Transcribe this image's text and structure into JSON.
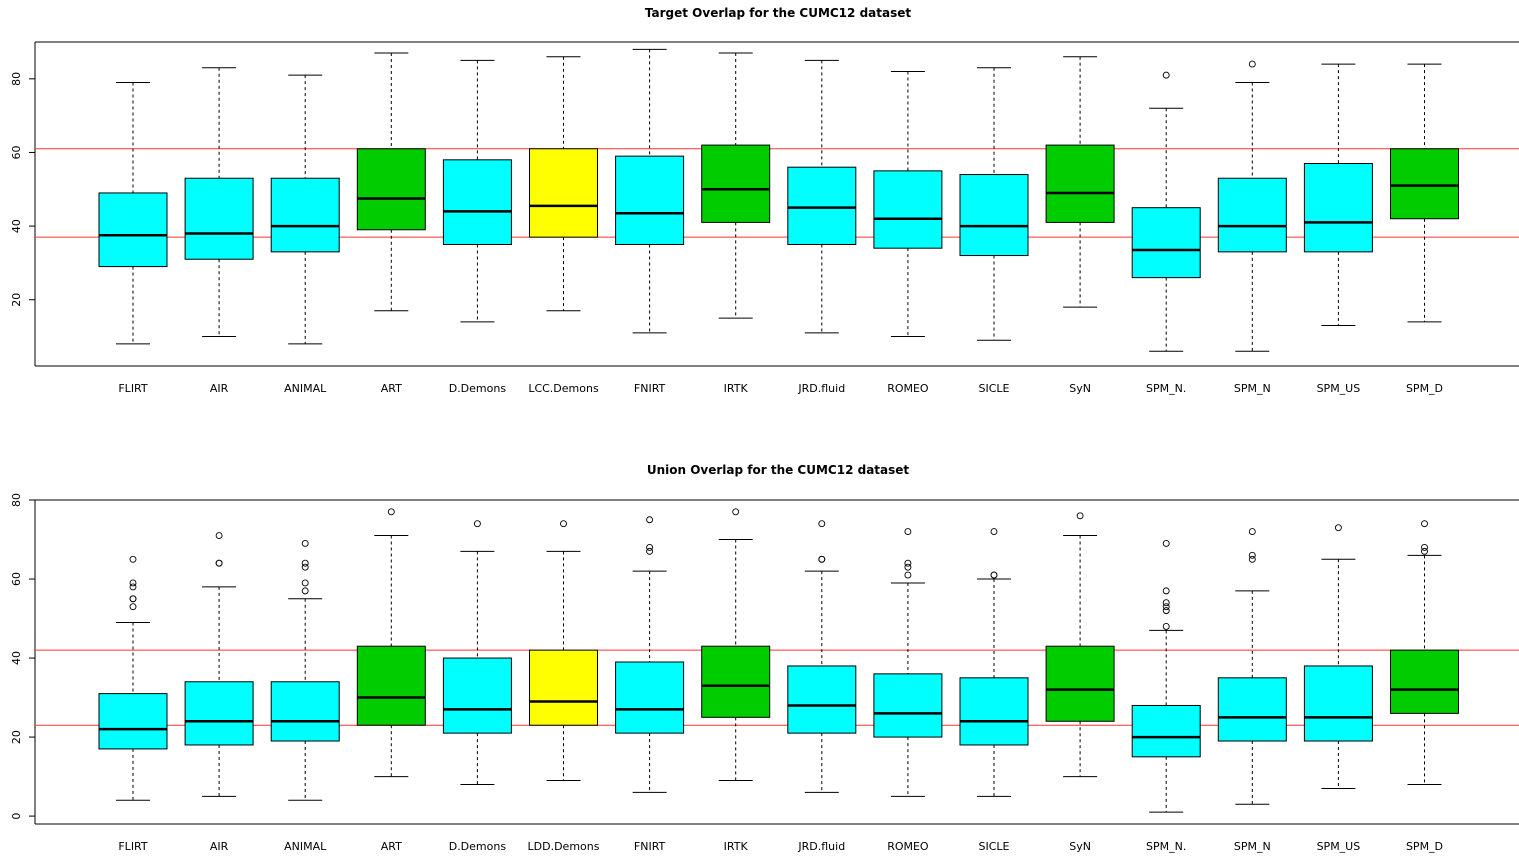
{
  "chart_data": [
    {
      "type": "boxplot",
      "title": "Target Overlap for the CUMC12 dataset",
      "xlabel": "",
      "ylabel": "",
      "ylim": [
        2,
        90
      ],
      "yticks": [
        20,
        40,
        60,
        80
      ],
      "reference_lines": [
        37,
        61
      ],
      "reference_color": "#ff3333",
      "categories": [
        "FLIRT",
        "AIR",
        "ANIMAL",
        "ART",
        "D.Demons",
        "LCC.Demons",
        "FNIRT",
        "IRTK",
        "JRD.fluid",
        "ROMEO",
        "SICLE",
        "SyN",
        "SPM_N.",
        "SPM_N",
        "SPM_US",
        "SPM_D"
      ],
      "colors": [
        "#00ffff",
        "#00ffff",
        "#00ffff",
        "#00cc00",
        "#00ffff",
        "#ffff00",
        "#00ffff",
        "#00cc00",
        "#00ffff",
        "#00ffff",
        "#00ffff",
        "#00cc00",
        "#00ffff",
        "#00ffff",
        "#00ffff",
        "#00cc00"
      ],
      "boxes": [
        {
          "whisker_low": 8,
          "q1": 29,
          "median": 37.5,
          "q3": 49,
          "whisker_high": 79,
          "outliers": []
        },
        {
          "whisker_low": 10,
          "q1": 31,
          "median": 38,
          "q3": 53,
          "whisker_high": 83,
          "outliers": []
        },
        {
          "whisker_low": 8,
          "q1": 33,
          "median": 40,
          "q3": 53,
          "whisker_high": 81,
          "outliers": []
        },
        {
          "whisker_low": 17,
          "q1": 39,
          "median": 47.5,
          "q3": 61,
          "whisker_high": 87,
          "outliers": []
        },
        {
          "whisker_low": 14,
          "q1": 35,
          "median": 44,
          "q3": 58,
          "whisker_high": 85,
          "outliers": []
        },
        {
          "whisker_low": 17,
          "q1": 37,
          "median": 45.5,
          "q3": 61,
          "whisker_high": 86,
          "outliers": []
        },
        {
          "whisker_low": 11,
          "q1": 35,
          "median": 43.5,
          "q3": 59,
          "whisker_high": 88,
          "outliers": []
        },
        {
          "whisker_low": 15,
          "q1": 41,
          "median": 50,
          "q3": 62,
          "whisker_high": 87,
          "outliers": []
        },
        {
          "whisker_low": 11,
          "q1": 35,
          "median": 45,
          "q3": 56,
          "whisker_high": 85,
          "outliers": []
        },
        {
          "whisker_low": 10,
          "q1": 34,
          "median": 42,
          "q3": 55,
          "whisker_high": 82,
          "outliers": []
        },
        {
          "whisker_low": 9,
          "q1": 32,
          "median": 40,
          "q3": 54,
          "whisker_high": 83,
          "outliers": []
        },
        {
          "whisker_low": 18,
          "q1": 41,
          "median": 49,
          "q3": 62,
          "whisker_high": 86,
          "outliers": []
        },
        {
          "whisker_low": 6,
          "q1": 26,
          "median": 33.5,
          "q3": 45,
          "whisker_high": 72,
          "outliers": [
            81
          ]
        },
        {
          "whisker_low": 6,
          "q1": 33,
          "median": 40,
          "q3": 53,
          "whisker_high": 79,
          "outliers": [
            84
          ]
        },
        {
          "whisker_low": 13,
          "q1": 33,
          "median": 41,
          "q3": 57,
          "whisker_high": 84,
          "outliers": []
        },
        {
          "whisker_low": 14,
          "q1": 42,
          "median": 51,
          "q3": 61,
          "whisker_high": 84,
          "outliers": []
        }
      ]
    },
    {
      "type": "boxplot",
      "title": "Union Overlap for the CUMC12 dataset",
      "xlabel": "",
      "ylabel": "",
      "ylim": [
        -2,
        80
      ],
      "yticks": [
        0,
        20,
        40,
        60,
        80
      ],
      "reference_lines": [
        23,
        42
      ],
      "reference_color": "#ff3333",
      "categories": [
        "FLIRT",
        "AIR",
        "ANIMAL",
        "ART",
        "D.Demons",
        "LDD.Demons",
        "FNIRT",
        "IRTK",
        "JRD.fluid",
        "ROMEO",
        "SICLE",
        "SyN",
        "SPM_N.",
        "SPM_N",
        "SPM_US",
        "SPM_D"
      ],
      "colors": [
        "#00ffff",
        "#00ffff",
        "#00ffff",
        "#00cc00",
        "#00ffff",
        "#ffff00",
        "#00ffff",
        "#00cc00",
        "#00ffff",
        "#00ffff",
        "#00ffff",
        "#00cc00",
        "#00ffff",
        "#00ffff",
        "#00ffff",
        "#00cc00"
      ],
      "boxes": [
        {
          "whisker_low": 4,
          "q1": 17,
          "median": 22,
          "q3": 31,
          "whisker_high": 49,
          "outliers": [
            53,
            55,
            55,
            58,
            59,
            65
          ]
        },
        {
          "whisker_low": 5,
          "q1": 18,
          "median": 24,
          "q3": 34,
          "whisker_high": 58,
          "outliers": [
            64,
            64,
            71
          ]
        },
        {
          "whisker_low": 4,
          "q1": 19,
          "median": 24,
          "q3": 34,
          "whisker_high": 55,
          "outliers": [
            57,
            59,
            63,
            64,
            69
          ]
        },
        {
          "whisker_low": 10,
          "q1": 23,
          "median": 30,
          "q3": 43,
          "whisker_high": 71,
          "outliers": [
            77
          ]
        },
        {
          "whisker_low": 8,
          "q1": 21,
          "median": 27,
          "q3": 40,
          "whisker_high": 67,
          "outliers": [
            74
          ]
        },
        {
          "whisker_low": 9,
          "q1": 23,
          "median": 29,
          "q3": 42,
          "whisker_high": 67,
          "outliers": [
            74
          ]
        },
        {
          "whisker_low": 6,
          "q1": 21,
          "median": 27,
          "q3": 39,
          "whisker_high": 62,
          "outliers": [
            67,
            68,
            75
          ]
        },
        {
          "whisker_low": 9,
          "q1": 25,
          "median": 33,
          "q3": 43,
          "whisker_high": 70,
          "outliers": [
            77
          ]
        },
        {
          "whisker_low": 6,
          "q1": 21,
          "median": 28,
          "q3": 38,
          "whisker_high": 62,
          "outliers": [
            65,
            65,
            74
          ]
        },
        {
          "whisker_low": 5,
          "q1": 20,
          "median": 26,
          "q3": 36,
          "whisker_high": 59,
          "outliers": [
            61,
            63,
            64,
            72
          ]
        },
        {
          "whisker_low": 5,
          "q1": 18,
          "median": 24,
          "q3": 35,
          "whisker_high": 60,
          "outliers": [
            61,
            61,
            72
          ]
        },
        {
          "whisker_low": 10,
          "q1": 24,
          "median": 32,
          "q3": 43,
          "whisker_high": 71,
          "outliers": [
            76
          ]
        },
        {
          "whisker_low": 1,
          "q1": 15,
          "median": 20,
          "q3": 28,
          "whisker_high": 47,
          "outliers": [
            48,
            52,
            53,
            54,
            57,
            69
          ]
        },
        {
          "whisker_low": 3,
          "q1": 19,
          "median": 25,
          "q3": 35,
          "whisker_high": 57,
          "outliers": [
            65,
            66,
            72
          ]
        },
        {
          "whisker_low": 7,
          "q1": 19,
          "median": 25,
          "q3": 38,
          "whisker_high": 65,
          "outliers": [
            73
          ]
        },
        {
          "whisker_low": 8,
          "q1": 26,
          "median": 32,
          "q3": 42,
          "whisker_high": 66,
          "outliers": [
            67,
            68,
            74
          ]
        }
      ]
    }
  ]
}
